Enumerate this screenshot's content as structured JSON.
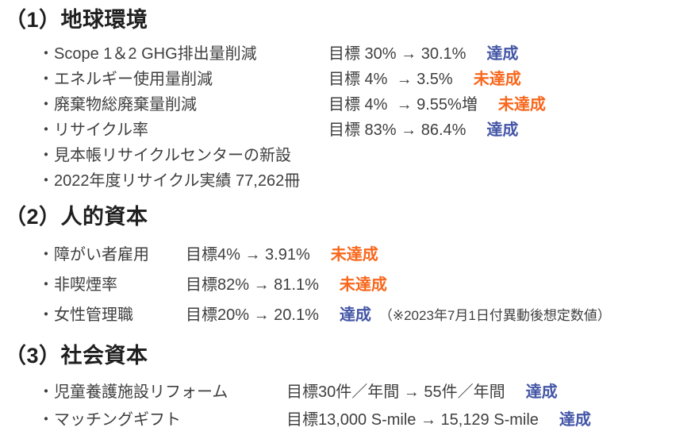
{
  "colors": {
    "heading": "#1f1f1f",
    "body_text": "#3f3f3f",
    "achieved_blue": "#4456a6",
    "not_achieved_orange": "#f8671c",
    "background": "#ffffff"
  },
  "sections": [
    {
      "heading": "（1）地球環境",
      "items": [
        {
          "label": "・Scope 1＆2 GHG排出量削減",
          "target": "目標 30% → 30.1%",
          "status": "達成",
          "status_type": "achieved"
        },
        {
          "label": "・エネルギー使用量削減",
          "target": "目標 4%  → 3.5%",
          "status": "未達成",
          "status_type": "not_achieved"
        },
        {
          "label": "・廃棄物総廃棄量削減",
          "target": "目標 4%  → 9.55%増",
          "status": "未達成",
          "status_type": "not_achieved"
        },
        {
          "label": "・リサイクル率",
          "target": "目標 83% → 86.4%",
          "status": "達成",
          "status_type": "achieved"
        },
        {
          "label": "・見本帳リサイクルセンターの新設"
        },
        {
          "label": "・2022年度リサイクル実績 77,262冊"
        }
      ]
    },
    {
      "heading": "（2）人的資本",
      "items": [
        {
          "label": "・障がい者雇用",
          "target": "目標4% → 3.91%",
          "status": "未達成",
          "status_type": "not_achieved"
        },
        {
          "label": "・非喫煙率",
          "target": "目標82% → 81.1%",
          "status": "未達成",
          "status_type": "not_achieved"
        },
        {
          "label": "・女性管理職",
          "target": "目標20% → 20.1%",
          "status": "達成",
          "status_type": "achieved",
          "note": "（※2023年7月1日付異動後想定数値）"
        }
      ]
    },
    {
      "heading": "（3）社会資本",
      "items": [
        {
          "label": "・児童養護施設リフォーム",
          "target": "目標30件／年間 → 55件／年間",
          "status": "達成",
          "status_type": "achieved"
        },
        {
          "label": "・マッチングギフト",
          "target": "目標13,000 S-mile → 15,129 S-mile",
          "status": "達成",
          "status_type": "achieved"
        }
      ]
    }
  ]
}
